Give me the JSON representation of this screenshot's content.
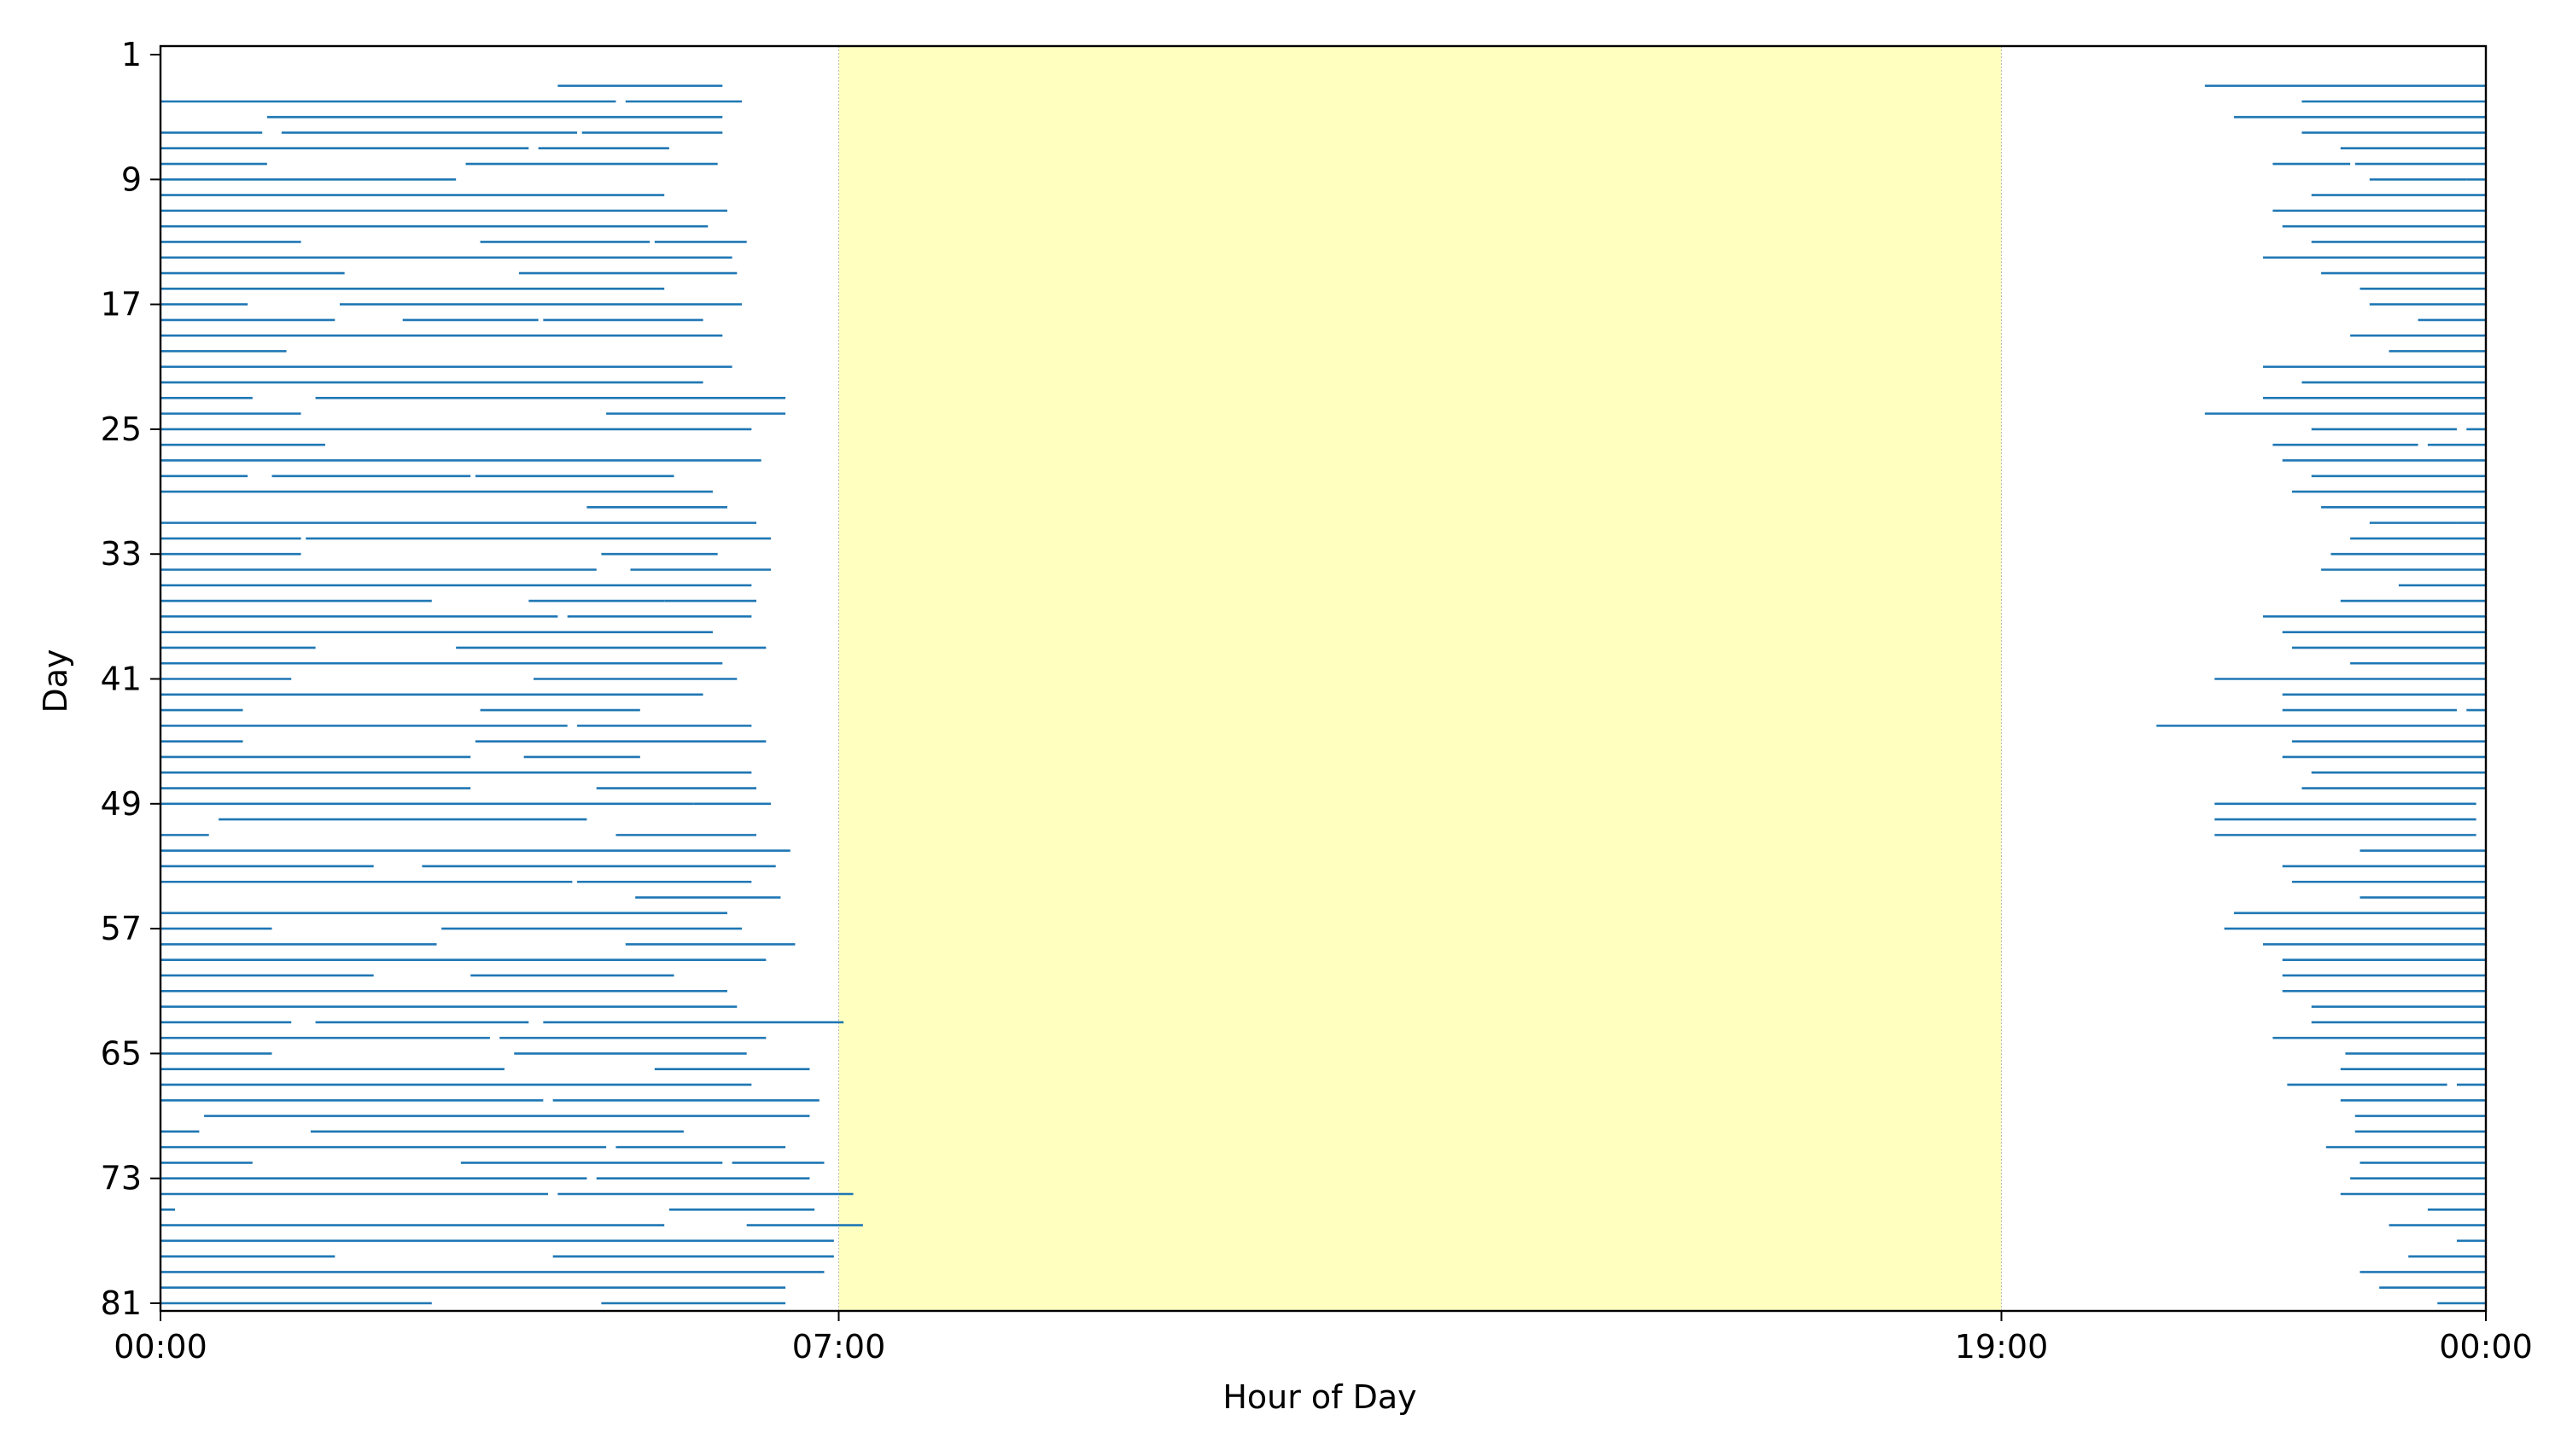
{
  "chart_data": {
    "type": "sleep_raster",
    "xlabel": "Hour of Day",
    "ylabel": "Day",
    "x_unit": "hours",
    "xlim": [
      0,
      24
    ],
    "ylim": [
      1,
      81
    ],
    "x_tick_values": [
      0,
      7,
      19,
      24
    ],
    "x_tick_labels": [
      "00:00",
      "07:00",
      "19:00",
      "00:00"
    ],
    "y_tick_values": [
      1,
      9,
      17,
      25,
      33,
      41,
      49,
      57,
      65,
      73,
      81
    ],
    "y_tick_labels": [
      "1",
      "9",
      "17",
      "25",
      "33",
      "41",
      "49",
      "57",
      "65",
      "73",
      "81"
    ],
    "highlight_band": {
      "x_start": 7,
      "x_end": 19,
      "color": "#ffffc0"
    },
    "grid": false,
    "legend": "none",
    "colors": {
      "segment": "#1f77b4",
      "band": "#ffffc0",
      "band_edge": "#bbbbbb"
    },
    "series": [
      {
        "day": 3,
        "segments": [
          [
            0,
            0
          ],
          [
            4.1,
            5.8
          ],
          [
            21.1,
            24
          ]
        ]
      },
      {
        "day": 4,
        "segments": [
          [
            0,
            4.7
          ],
          [
            4.8,
            6.0
          ],
          [
            22.1,
            24
          ]
        ]
      },
      {
        "day": 5,
        "segments": [
          [
            1.1,
            5.8
          ],
          [
            21.4,
            24
          ]
        ]
      },
      {
        "day": 6,
        "segments": [
          [
            0,
            1.05
          ],
          [
            1.25,
            4.3
          ],
          [
            4.35,
            5.8
          ],
          [
            22.1,
            24
          ]
        ]
      },
      {
        "day": 7,
        "segments": [
          [
            0,
            1.15
          ],
          [
            1.15,
            3.8
          ],
          [
            3.9,
            5.25
          ],
          [
            22.5,
            24
          ]
        ]
      },
      {
        "day": 8,
        "segments": [
          [
            0,
            1.1
          ],
          [
            3.15,
            5.75
          ],
          [
            21.8,
            22.6
          ],
          [
            22.65,
            24
          ]
        ]
      },
      {
        "day": 9,
        "segments": [
          [
            0,
            3.05
          ],
          [
            22.8,
            23.8
          ],
          [
            23.8,
            24
          ]
        ]
      },
      {
        "day": 10,
        "segments": [
          [
            0,
            5.2
          ],
          [
            22.2,
            24
          ]
        ]
      },
      {
        "day": 11,
        "segments": [
          [
            0,
            5.85
          ],
          [
            21.8,
            24
          ]
        ]
      },
      {
        "day": 12,
        "segments": [
          [
            0,
            5.65
          ],
          [
            21.9,
            24
          ]
        ]
      },
      {
        "day": 13,
        "segments": [
          [
            0,
            1.45
          ],
          [
            3.3,
            5.05
          ],
          [
            5.1,
            6.05
          ],
          [
            22.2,
            24
          ]
        ]
      },
      {
        "day": 14,
        "segments": [
          [
            0,
            5.9
          ],
          [
            21.7,
            24
          ]
        ]
      },
      {
        "day": 15,
        "segments": [
          [
            0,
            1.9
          ],
          [
            3.7,
            5.95
          ],
          [
            22.3,
            24
          ]
        ]
      },
      {
        "day": 16,
        "segments": [
          [
            0,
            5.2
          ],
          [
            22.7,
            24
          ]
        ]
      },
      {
        "day": 17,
        "segments": [
          [
            0,
            0.9
          ],
          [
            1.85,
            6.0
          ],
          [
            22.8,
            24
          ]
        ]
      },
      {
        "day": 18,
        "segments": [
          [
            0,
            1.8
          ],
          [
            2.5,
            3.9
          ],
          [
            3.95,
            5.6
          ],
          [
            23.3,
            24
          ]
        ]
      },
      {
        "day": 19,
        "segments": [
          [
            0,
            5.8
          ],
          [
            22.6,
            24
          ]
        ]
      },
      {
        "day": 20,
        "segments": [
          [
            0,
            1.3
          ],
          [
            23.0,
            24
          ]
        ]
      },
      {
        "day": 21,
        "segments": [
          [
            0,
            5.9
          ],
          [
            21.7,
            24
          ]
        ]
      },
      {
        "day": 22,
        "segments": [
          [
            0,
            5.6
          ],
          [
            22.1,
            24
          ]
        ]
      },
      {
        "day": 23,
        "segments": [
          [
            0,
            0.95
          ],
          [
            1.6,
            6.45
          ],
          [
            21.7,
            24
          ]
        ]
      },
      {
        "day": 24,
        "segments": [
          [
            0,
            1.45
          ],
          [
            4.6,
            6.45
          ],
          [
            21.1,
            24
          ]
        ]
      },
      {
        "day": 25,
        "segments": [
          [
            0,
            6.1
          ],
          [
            22.2,
            23.7
          ],
          [
            23.8,
            24
          ]
        ]
      },
      {
        "day": 26,
        "segments": [
          [
            0,
            1.7
          ],
          [
            21.8,
            23.3
          ],
          [
            23.4,
            24
          ]
        ]
      },
      {
        "day": 27,
        "segments": [
          [
            0,
            6.2
          ],
          [
            21.9,
            24
          ]
        ]
      },
      {
        "day": 28,
        "segments": [
          [
            0,
            0.9
          ],
          [
            1.15,
            3.2
          ],
          [
            3.25,
            5.3
          ],
          [
            22.2,
            24
          ]
        ]
      },
      {
        "day": 29,
        "segments": [
          [
            0,
            5.7
          ],
          [
            22.0,
            24
          ]
        ]
      },
      {
        "day": 30,
        "segments": [
          [
            4.4,
            5.85
          ],
          [
            22.3,
            24
          ]
        ]
      },
      {
        "day": 31,
        "segments": [
          [
            0,
            6.15
          ],
          [
            22.8,
            23.7
          ],
          [
            23.7,
            24
          ]
        ]
      },
      {
        "day": 32,
        "segments": [
          [
            0,
            1.45
          ],
          [
            1.5,
            6.3
          ],
          [
            22.6,
            24
          ]
        ]
      },
      {
        "day": 33,
        "segments": [
          [
            0,
            1.45
          ],
          [
            4.55,
            5.75
          ],
          [
            22.4,
            24
          ]
        ]
      },
      {
        "day": 34,
        "segments": [
          [
            0,
            4.5
          ],
          [
            4.85,
            6.3
          ],
          [
            22.3,
            24
          ]
        ]
      },
      {
        "day": 35,
        "segments": [
          [
            0,
            6.1
          ],
          [
            23.1,
            24
          ]
        ]
      },
      {
        "day": 36,
        "segments": [
          [
            0,
            2.8
          ],
          [
            3.8,
            5.2
          ],
          [
            5.2,
            6.15
          ],
          [
            22.5,
            24
          ]
        ]
      },
      {
        "day": 37,
        "segments": [
          [
            0,
            4.1
          ],
          [
            4.2,
            6.1
          ],
          [
            21.7,
            24
          ]
        ]
      },
      {
        "day": 38,
        "segments": [
          [
            0,
            5.7
          ],
          [
            21.9,
            24
          ]
        ]
      },
      {
        "day": 39,
        "segments": [
          [
            0,
            1.6
          ],
          [
            3.05,
            6.25
          ],
          [
            22.0,
            24
          ]
        ]
      },
      {
        "day": 40,
        "segments": [
          [
            0,
            5.8
          ],
          [
            22.6,
            24
          ]
        ]
      },
      {
        "day": 41,
        "segments": [
          [
            0,
            1.35
          ],
          [
            3.85,
            5.95
          ],
          [
            21.2,
            24
          ]
        ]
      },
      {
        "day": 42,
        "segments": [
          [
            0,
            5.6
          ],
          [
            21.9,
            24
          ]
        ]
      },
      {
        "day": 43,
        "segments": [
          [
            0,
            0.85
          ],
          [
            3.3,
            4.95
          ],
          [
            21.9,
            23.7
          ],
          [
            23.8,
            24
          ]
        ]
      },
      {
        "day": 44,
        "segments": [
          [
            0,
            4.2
          ],
          [
            4.3,
            6.1
          ],
          [
            20.6,
            24
          ]
        ]
      },
      {
        "day": 45,
        "segments": [
          [
            0,
            0.85
          ],
          [
            3.25,
            6.25
          ],
          [
            22.0,
            24
          ]
        ]
      },
      {
        "day": 46,
        "segments": [
          [
            0,
            3.2
          ],
          [
            3.75,
            4.95
          ],
          [
            21.9,
            24
          ]
        ]
      },
      {
        "day": 47,
        "segments": [
          [
            0,
            6.1
          ],
          [
            22.2,
            24
          ]
        ]
      },
      {
        "day": 48,
        "segments": [
          [
            0,
            3.2
          ],
          [
            4.5,
            6.15
          ],
          [
            22.1,
            24
          ]
        ]
      },
      {
        "day": 49,
        "segments": [
          [
            0,
            5.5
          ],
          [
            5.5,
            6.3
          ],
          [
            21.2,
            23.9
          ]
        ]
      },
      {
        "day": 50,
        "segments": [
          [
            0.6,
            4.4
          ],
          [
            21.2,
            23.9
          ]
        ]
      },
      {
        "day": 51,
        "segments": [
          [
            0,
            0.5
          ],
          [
            4.7,
            6.15
          ],
          [
            21.2,
            23.9
          ]
        ]
      },
      {
        "day": 52,
        "segments": [
          [
            0,
            6.5
          ],
          [
            22.7,
            24
          ]
        ]
      },
      {
        "day": 53,
        "segments": [
          [
            0,
            2.2
          ],
          [
            2.7,
            6.35
          ],
          [
            21.9,
            24
          ]
        ]
      },
      {
        "day": 54,
        "segments": [
          [
            0,
            4.25
          ],
          [
            4.3,
            6.1
          ],
          [
            22.0,
            24
          ]
        ]
      },
      {
        "day": 55,
        "segments": [
          [
            4.9,
            6.4
          ],
          [
            22.7,
            24
          ]
        ]
      },
      {
        "day": 56,
        "segments": [
          [
            0,
            5.85
          ],
          [
            21.4,
            24
          ]
        ]
      },
      {
        "day": 57,
        "segments": [
          [
            0,
            1.15
          ],
          [
            2.9,
            6.0
          ],
          [
            21.3,
            24
          ]
        ]
      },
      {
        "day": 58,
        "segments": [
          [
            0,
            2.85
          ],
          [
            4.8,
            6.55
          ],
          [
            21.7,
            24
          ]
        ]
      },
      {
        "day": 59,
        "segments": [
          [
            0,
            6.25
          ],
          [
            21.9,
            24
          ]
        ]
      },
      {
        "day": 60,
        "segments": [
          [
            0,
            2.2
          ],
          [
            3.2,
            5.3
          ],
          [
            21.9,
            24
          ]
        ]
      },
      {
        "day": 61,
        "segments": [
          [
            0,
            5.85
          ],
          [
            21.9,
            24
          ]
        ]
      },
      {
        "day": 62,
        "segments": [
          [
            0,
            5.95
          ],
          [
            22.2,
            24
          ]
        ]
      },
      {
        "day": 63,
        "segments": [
          [
            0,
            1.35
          ],
          [
            1.6,
            3.8
          ],
          [
            3.95,
            7.05
          ],
          [
            22.2,
            24
          ]
        ]
      },
      {
        "day": 64,
        "segments": [
          [
            0,
            3.4
          ],
          [
            3.5,
            6.25
          ],
          [
            21.8,
            24
          ]
        ]
      },
      {
        "day": 65,
        "segments": [
          [
            0,
            1.15
          ],
          [
            3.65,
            6.05
          ],
          [
            22.55,
            24
          ]
        ]
      },
      {
        "day": 66,
        "segments": [
          [
            0,
            3.55
          ],
          [
            5.1,
            6.7
          ],
          [
            22.5,
            24
          ]
        ]
      },
      {
        "day": 67,
        "segments": [
          [
            0,
            6.1
          ],
          [
            21.95,
            23.6
          ],
          [
            23.7,
            24
          ]
        ]
      },
      {
        "day": 68,
        "segments": [
          [
            0,
            3.95
          ],
          [
            4.05,
            6.8
          ],
          [
            22.5,
            24
          ]
        ]
      },
      {
        "day": 69,
        "segments": [
          [
            0.45,
            6.7
          ],
          [
            22.65,
            24
          ]
        ]
      },
      {
        "day": 70,
        "segments": [
          [
            0,
            0.4
          ],
          [
            1.55,
            5.4
          ],
          [
            22.65,
            24
          ]
        ]
      },
      {
        "day": 71,
        "segments": [
          [
            0,
            4.6
          ],
          [
            4.7,
            6.45
          ],
          [
            22.35,
            24
          ]
        ]
      },
      {
        "day": 72,
        "segments": [
          [
            0,
            0.95
          ],
          [
            3.1,
            5.8
          ],
          [
            5.9,
            6.85
          ],
          [
            22.7,
            24
          ]
        ]
      },
      {
        "day": 73,
        "segments": [
          [
            0,
            4.4
          ],
          [
            4.5,
            6.7
          ],
          [
            22.6,
            24
          ]
        ]
      },
      {
        "day": 74,
        "segments": [
          [
            0,
            4.0
          ],
          [
            4.1,
            7.15
          ],
          [
            22.5,
            24
          ]
        ]
      },
      {
        "day": 75,
        "segments": [
          [
            0,
            0.15
          ],
          [
            5.25,
            6.75
          ],
          [
            23.4,
            24
          ]
        ]
      },
      {
        "day": 76,
        "segments": [
          [
            0,
            5.2
          ],
          [
            6.05,
            7.25
          ],
          [
            23.0,
            24
          ]
        ]
      },
      {
        "day": 77,
        "segments": [
          [
            0,
            6.95
          ],
          [
            23.7,
            24
          ]
        ]
      },
      {
        "day": 78,
        "segments": [
          [
            0,
            1.8
          ],
          [
            4.05,
            6.95
          ],
          [
            23.2,
            24
          ]
        ]
      },
      {
        "day": 79,
        "segments": [
          [
            0,
            6.85
          ],
          [
            22.7,
            24
          ]
        ]
      },
      {
        "day": 80,
        "segments": [
          [
            0,
            6.45
          ],
          [
            22.9,
            24
          ]
        ]
      },
      {
        "day": 81,
        "segments": [
          [
            0,
            2.8
          ],
          [
            4.55,
            6.45
          ],
          [
            23.5,
            24
          ]
        ]
      }
    ]
  }
}
